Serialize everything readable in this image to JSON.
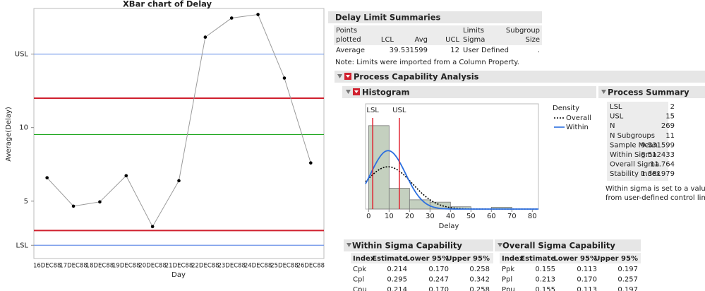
{
  "chart_data": [
    {
      "type": "line",
      "title": "XBar chart of Delay",
      "x_label": "Day",
      "y_label": "Average(Delay)",
      "categories": [
        "16DEC88",
        "17DEC88",
        "18DEC88",
        "19DEC88",
        "20DEC88",
        "21DEC88",
        "22DEC88",
        "23DEC88",
        "24DEC88",
        "25DEC88",
        "26DEC88"
      ],
      "series": [
        {
          "color": "#9a9a9a",
          "marker_color": "#000000",
          "values": [
            6.59,
            4.66,
            4.95,
            6.73,
            3.27,
            6.39,
            16.15,
            17.45,
            17.69,
            13.37,
            7.6
          ]
        }
      ],
      "ylim": [
        1.1,
        18.1
      ],
      "yticks": [
        {
          "value": 2,
          "label": "LSL"
        },
        5,
        10,
        {
          "value": 15,
          "label": "USL"
        }
      ],
      "spec_tick_color": "#3a66d0",
      "reference_lines": [
        {
          "value": 15,
          "color": "#6b93e8"
        },
        {
          "value": 12,
          "color": "#d0202e"
        },
        {
          "value": 9.531599,
          "color": "#22a822"
        },
        {
          "value": 3,
          "color": "#d0202e"
        },
        {
          "value": 2,
          "color": "#6b93e8"
        }
      ]
    },
    {
      "type": "histogram",
      "x_label": "Delay",
      "bins": [
        0,
        10,
        20,
        30,
        40,
        50,
        60,
        70,
        80
      ],
      "values": [
        180,
        45,
        20,
        15,
        5,
        0,
        4,
        0
      ],
      "color": "#c4d0bf",
      "xlim": [
        -1.5,
        83
      ],
      "xticks": [
        0,
        10,
        20,
        30,
        40,
        50,
        60,
        70,
        80
      ],
      "ylim": [
        0,
        227
      ],
      "spec_lines": [
        {
          "label": "LSL",
          "value": 2,
          "color": "#e0202e"
        },
        {
          "label": "USL",
          "value": 15,
          "color": "#e0202e"
        }
      ],
      "legend_title": "Density",
      "curves": [
        {
          "name": "Overall",
          "color": "#000000",
          "dash": true,
          "mean": 9.531599,
          "sigma": 11.764
        },
        {
          "name": "Within",
          "color": "#2c6fe0",
          "dash": false,
          "mean": 9.531599,
          "sigma": 8.512433
        }
      ],
      "n": 269
    }
  ],
  "delay_limit_summaries": {
    "title": "Delay Limit Summaries",
    "headers": [
      [
        "Points",
        "plotted"
      ],
      [
        "LCL"
      ],
      [
        "Avg"
      ],
      [
        "UCL"
      ],
      [
        "Limits",
        "Sigma"
      ],
      [
        "Subgroup",
        "Size"
      ]
    ],
    "rows": [
      [
        "Average",
        3,
        9.531599,
        12,
        "User Defined",
        "."
      ]
    ],
    "note": "Note: Limits were imported from a Column Property."
  },
  "process_capability": {
    "title": "Process Capability Analysis",
    "histogram_title": "Histogram",
    "process_summary": {
      "title": "Process Summary",
      "rows": [
        [
          "LSL",
          2
        ],
        [
          "USL",
          15
        ],
        [
          "N",
          269
        ],
        [
          "N Subgroups",
          11
        ],
        [
          "Sample Mean",
          9.531599
        ],
        [
          "Within Sigma",
          8.512433
        ],
        [
          "Overall Sigma",
          11.764
        ],
        [
          "Stability Index",
          1.381979
        ]
      ],
      "note": [
        "Within sigma is set to a value der",
        "from user-defined control limits."
      ]
    },
    "within": {
      "title": "Within Sigma Capability",
      "headers": [
        "Index",
        "Estimate",
        "Lower 95%",
        "Upper 95%"
      ],
      "rows": [
        [
          "Cpk",
          "0.214",
          "0.170",
          "0.258"
        ],
        [
          "Cpl",
          "0.295",
          "0.247",
          "0.342"
        ],
        [
          "Cpu",
          "0.214",
          "0.170",
          "0.258"
        ]
      ]
    },
    "overall": {
      "title": "Overall Sigma Capability",
      "headers": [
        "Index",
        "Estimate",
        "Lower 95%",
        "Upper 95%"
      ],
      "rows": [
        [
          "Ppk",
          "0.155",
          "0.113",
          "0.197"
        ],
        [
          "Ppl",
          "0.213",
          "0.170",
          "0.257"
        ],
        [
          "Ppu",
          "0.155",
          "0.113",
          "0.197"
        ]
      ]
    }
  }
}
